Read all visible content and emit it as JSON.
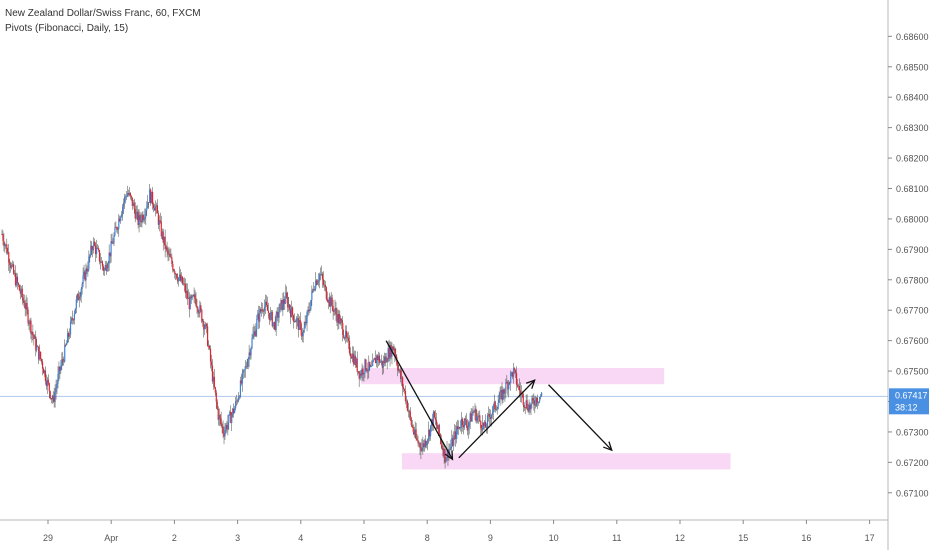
{
  "header": {
    "title": "New Zealand Dollar/Swiss Franc, 60, FXCM",
    "indicator": "Pivots (Fibonacci, Daily, 15)"
  },
  "price_label": {
    "price": "0.67417",
    "countdown": "38:12",
    "color": "#4a90e2"
  },
  "colors": {
    "up": "#3f7fd6",
    "down": "#e0242f",
    "zone": "#f8d8f4",
    "grid": "#eeeeee",
    "axis": "#555555",
    "price_line": "#b0c8ee"
  },
  "chart_data": {
    "type": "candlestick",
    "x_ticks": [
      "29",
      "Apr",
      "2",
      "3",
      "4",
      "5",
      "8",
      "9",
      "10",
      "11",
      "12",
      "15",
      "16",
      "17"
    ],
    "y_ticks": [
      "0.67100",
      "0.67200",
      "0.67300",
      "0.67400",
      "0.67500",
      "0.67600",
      "0.67700",
      "0.67800",
      "0.67900",
      "0.68000",
      "0.68100",
      "0.68200",
      "0.68300",
      "0.68400",
      "0.68500",
      "0.68600"
    ],
    "ylim": [
      0.6705,
      0.6868
    ],
    "last_price": 0.67417,
    "path_closes": [
      0.6795,
      0.6789,
      0.6782,
      0.6777,
      0.6772,
      0.6765,
      0.6758,
      0.6753,
      0.6746,
      0.674,
      0.6749,
      0.6756,
      0.6764,
      0.6772,
      0.6778,
      0.6784,
      0.6792,
      0.6788,
      0.6783,
      0.6789,
      0.6796,
      0.6803,
      0.6809,
      0.6805,
      0.6799,
      0.6802,
      0.6808,
      0.6804,
      0.6796,
      0.6789,
      0.6785,
      0.6781,
      0.6778,
      0.6772,
      0.6774,
      0.6769,
      0.6763,
      0.6749,
      0.6736,
      0.673,
      0.6734,
      0.6738,
      0.6745,
      0.6752,
      0.676,
      0.6767,
      0.6772,
      0.6769,
      0.6765,
      0.6771,
      0.6774,
      0.6769,
      0.6766,
      0.6762,
      0.677,
      0.6779,
      0.6782,
      0.6776,
      0.6772,
      0.6768,
      0.6764,
      0.6758,
      0.6754,
      0.6749,
      0.6752,
      0.675,
      0.6755,
      0.6752,
      0.6756,
      0.6758,
      0.6749,
      0.6742,
      0.6733,
      0.6727,
      0.6725,
      0.6729,
      0.6735,
      0.6729,
      0.6722,
      0.6725,
      0.673,
      0.6734,
      0.6732,
      0.6737,
      0.6734,
      0.6731,
      0.6736,
      0.6739,
      0.6742,
      0.6746,
      0.675,
      0.6744,
      0.674,
      0.6738,
      0.6741,
      0.6742
    ],
    "zones": [
      {
        "name": "resistance-zone",
        "day_start": 4.95,
        "day_end": 9.75,
        "low": 0.6747,
        "high": 0.6751
      },
      {
        "name": "support-zone",
        "day_start": 5.6,
        "day_end": 10.8,
        "low": 0.6719,
        "high": 0.6723
      }
    ],
    "arrows": [
      {
        "name": "arrow-down-1",
        "from": [
          5.35,
          0.676
        ],
        "to": [
          6.4,
          0.6721
        ]
      },
      {
        "name": "arrow-up",
        "from": [
          6.5,
          0.67215
        ],
        "to": [
          7.7,
          0.6747
        ]
      },
      {
        "name": "arrow-down-2",
        "from": [
          7.92,
          0.67455
        ],
        "to": [
          8.92,
          0.6724
        ]
      }
    ]
  }
}
